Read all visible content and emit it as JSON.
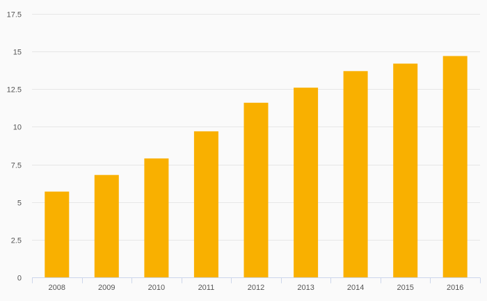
{
  "colors": {
    "bar": "#f9b000",
    "background": "#fafafa",
    "grid": "#e6e6e6",
    "axis": "#ccd6eb",
    "label": "#555555"
  },
  "chart_data": {
    "type": "bar",
    "title": "",
    "xlabel": "",
    "ylabel": "",
    "categories": [
      "2008",
      "2009",
      "2010",
      "2011",
      "2012",
      "2013",
      "2014",
      "2015",
      "2016"
    ],
    "series": [
      {
        "values": [
          5.7,
          6.8,
          7.9,
          9.7,
          11.6,
          12.6,
          13.7,
          14.2,
          14.7
        ]
      }
    ],
    "ylim": [
      0,
      17.5
    ],
    "yticks": [
      "0",
      "2.5",
      "5",
      "7.5",
      "10",
      "12.5",
      "15",
      "17.5"
    ],
    "grid": true,
    "legend": "none"
  }
}
